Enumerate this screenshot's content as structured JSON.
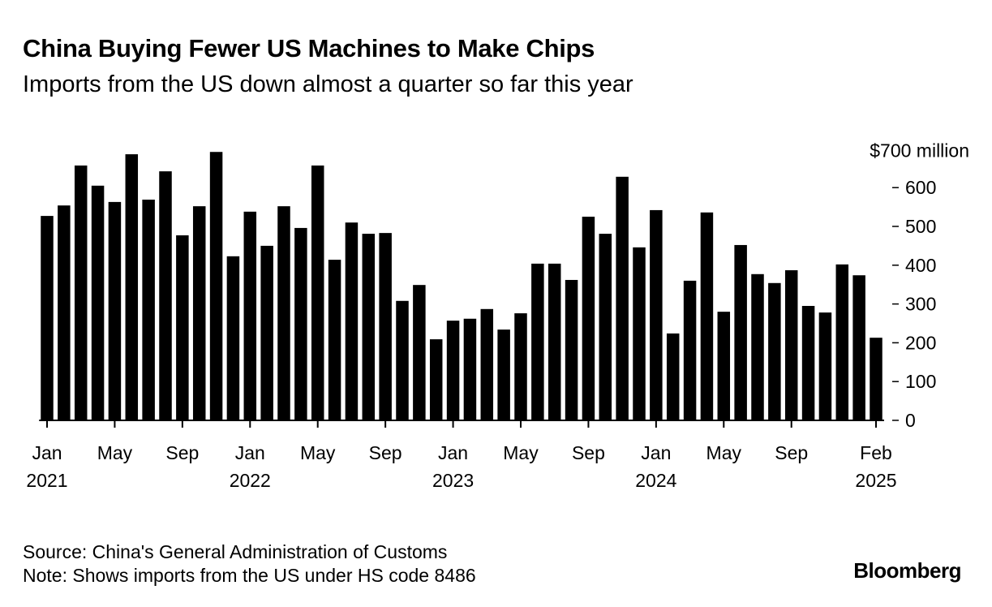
{
  "header": {
    "title": "China Buying Fewer US Machines to Make Chips",
    "subtitle": "Imports from the US down almost a quarter so far this year"
  },
  "footer": {
    "source": "Source: China's General Administration of Customs",
    "note": "Note: Shows imports from the US under HS code 8486",
    "logo": "Bloomberg"
  },
  "colors": {
    "bar": "#000000",
    "background": "#ffffff"
  },
  "chart_data": {
    "type": "bar",
    "title": "China Buying Fewer US Machines to Make Chips",
    "subtitle": "Imports from the US down almost a quarter so far this year",
    "ylabel": "$ million",
    "unit_label": "$700 million",
    "ylim": [
      0,
      700
    ],
    "yticks": [
      0,
      100,
      200,
      300,
      400,
      500,
      600
    ],
    "ytick_labels": [
      "0",
      "100",
      "200",
      "300",
      "400",
      "500",
      "600"
    ],
    "xtick_labels": [
      {
        "index": 0,
        "line1": "Jan",
        "line2": "2021"
      },
      {
        "index": 4,
        "line1": "May",
        "line2": ""
      },
      {
        "index": 8,
        "line1": "Sep",
        "line2": ""
      },
      {
        "index": 12,
        "line1": "Jan",
        "line2": "2022"
      },
      {
        "index": 16,
        "line1": "May",
        "line2": ""
      },
      {
        "index": 20,
        "line1": "Sep",
        "line2": ""
      },
      {
        "index": 24,
        "line1": "Jan",
        "line2": "2023"
      },
      {
        "index": 28,
        "line1": "May",
        "line2": ""
      },
      {
        "index": 32,
        "line1": "Sep",
        "line2": ""
      },
      {
        "index": 36,
        "line1": "Jan",
        "line2": "2024"
      },
      {
        "index": 40,
        "line1": "May",
        "line2": ""
      },
      {
        "index": 44,
        "line1": "Sep",
        "line2": ""
      },
      {
        "index": 49,
        "line1": "Feb",
        "line2": "2025"
      }
    ],
    "categories": [
      "2021-01",
      "2021-02",
      "2021-03",
      "2021-04",
      "2021-05",
      "2021-06",
      "2021-07",
      "2021-08",
      "2021-09",
      "2021-10",
      "2021-11",
      "2021-12",
      "2022-01",
      "2022-02",
      "2022-03",
      "2022-04",
      "2022-05",
      "2022-06",
      "2022-07",
      "2022-08",
      "2022-09",
      "2022-10",
      "2022-11",
      "2022-12",
      "2023-01",
      "2023-02",
      "2023-03",
      "2023-04",
      "2023-05",
      "2023-06",
      "2023-07",
      "2023-08",
      "2023-09",
      "2023-10",
      "2023-11",
      "2023-12",
      "2024-01",
      "2024-02",
      "2024-03",
      "2024-04",
      "2024-05",
      "2024-06",
      "2024-07",
      "2024-08",
      "2024-09",
      "2024-10",
      "2024-11",
      "2024-12",
      "2025-01",
      "2025-02"
    ],
    "values": [
      527,
      554,
      657,
      605,
      563,
      686,
      569,
      642,
      477,
      552,
      692,
      423,
      538,
      450,
      552,
      496,
      657,
      414,
      510,
      481,
      483,
      308,
      349,
      209,
      257,
      262,
      287,
      234,
      276,
      404,
      404,
      362,
      525,
      481,
      628,
      446,
      542,
      224,
      360,
      536,
      280,
      452,
      377,
      354,
      387,
      295,
      278,
      402,
      374,
      213
    ],
    "grid": false,
    "legend": "none"
  }
}
